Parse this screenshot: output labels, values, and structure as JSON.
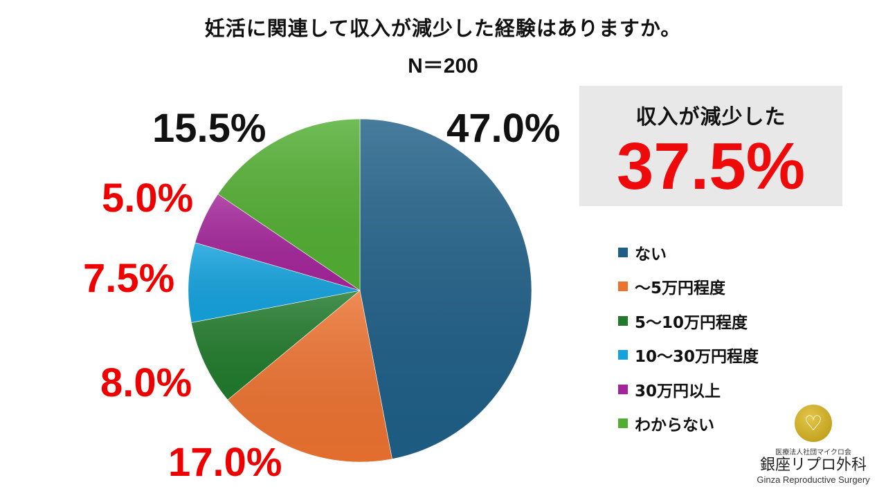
{
  "header": {
    "title": "妊活に関連して収入が減少した経験はありますか。",
    "sample_size": "N＝200"
  },
  "callout": {
    "label": "収入が減少した",
    "value": "37.5%"
  },
  "legend": {
    "items": [
      {
        "label": "ない",
        "color": "#1f5f87"
      },
      {
        "label": "～5万円程度",
        "color": "#ec7230"
      },
      {
        "label": "5～10万円程度",
        "color": "#217a2c"
      },
      {
        "label": "10～30万円程度",
        "color": "#14a2dd"
      },
      {
        "label": "30万円以上",
        "color": "#a3259a"
      },
      {
        "label": "わからない",
        "color": "#52ae32"
      }
    ]
  },
  "logo": {
    "org": "医療法人社団マイクロ会",
    "name_jp": "銀座リプロ外科",
    "name_en": "Ginza Reproductive Surgery"
  },
  "chart_data": {
    "type": "pie",
    "title": "妊活に関連して収入が減少した経験はありますか。",
    "subtitle": "N＝200",
    "start_angle": "12 o'clock, clockwise",
    "categories": [
      "ない",
      "～5万円程度",
      "5～10万円程度",
      "10～30万円程度",
      "30万円以上",
      "わからない"
    ],
    "values": [
      47.0,
      17.0,
      8.0,
      7.5,
      5.0,
      15.5
    ],
    "labels": [
      "47.0%",
      "17.0%",
      "8.0%",
      "7.5%",
      "5.0%",
      "15.5%"
    ],
    "colors": [
      "#1f5f87",
      "#ec7230",
      "#217a2c",
      "#14a2dd",
      "#a3259a",
      "#52ae32"
    ],
    "label_colors": [
      "#111111",
      "#ee0000",
      "#ee0000",
      "#ee0000",
      "#ee0000",
      "#111111"
    ],
    "legend_position": "right",
    "annotation": {
      "text": "収入が減少した 37.5%"
    }
  }
}
